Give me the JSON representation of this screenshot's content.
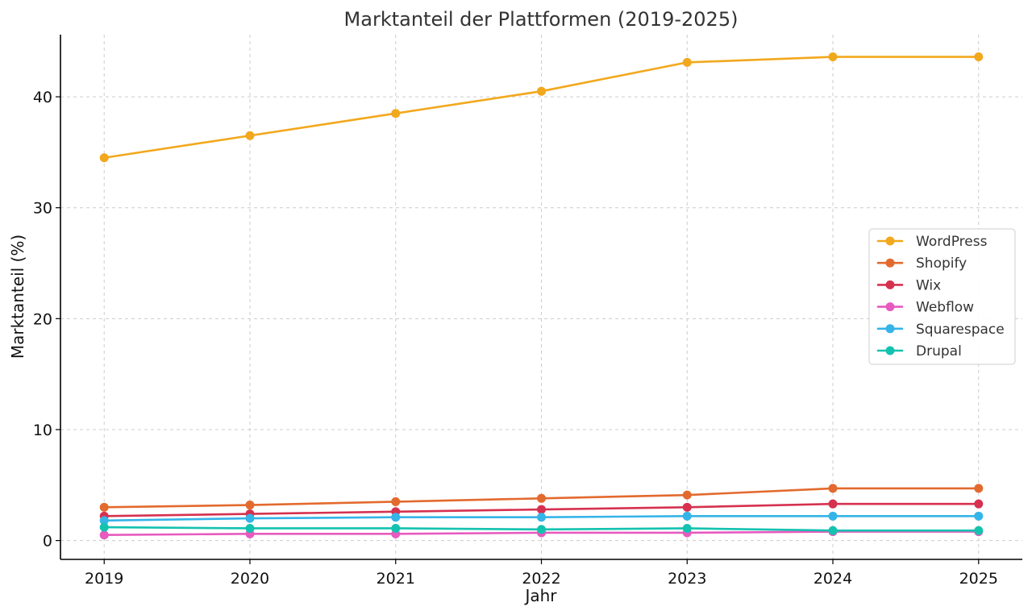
{
  "chart_data": {
    "type": "line",
    "title": "Marktanteil der Plattformen (2019-2025)",
    "xlabel": "Jahr",
    "ylabel": "Marktanteil (%)",
    "x": [
      2019,
      2020,
      2021,
      2022,
      2023,
      2024,
      2025
    ],
    "x_tick_labels": [
      "2019",
      "2020",
      "2021",
      "2022",
      "2023",
      "2024",
      "2025"
    ],
    "y_ticks": [
      0,
      10,
      20,
      30,
      40
    ],
    "y_tick_labels": [
      "0",
      "10",
      "20",
      "30",
      "40"
    ],
    "ylim": [
      -1.7,
      45.6
    ],
    "xlim": [
      2018.7,
      2025.3
    ],
    "grid": true,
    "legend_position": "center-right",
    "series": [
      {
        "name": "WordPress",
        "color": "#F2A81D",
        "values": [
          34.5,
          36.5,
          38.5,
          40.5,
          43.1,
          43.6,
          43.6
        ]
      },
      {
        "name": "Shopify",
        "color": "#E36A2E",
        "values": [
          3.0,
          3.2,
          3.5,
          3.8,
          4.1,
          4.7,
          4.7
        ]
      },
      {
        "name": "Wix",
        "color": "#D6314F",
        "values": [
          2.2,
          2.4,
          2.6,
          2.8,
          3.0,
          3.3,
          3.3
        ]
      },
      {
        "name": "Webflow",
        "color": "#E75ABF",
        "values": [
          0.5,
          0.6,
          0.6,
          0.7,
          0.7,
          0.8,
          0.8
        ]
      },
      {
        "name": "Squarespace",
        "color": "#35B4E8",
        "values": [
          1.8,
          2.0,
          2.1,
          2.1,
          2.2,
          2.2,
          2.2
        ]
      },
      {
        "name": "Drupal",
        "color": "#14C2B0",
        "values": [
          1.2,
          1.1,
          1.1,
          1.0,
          1.1,
          0.9,
          0.9
        ]
      }
    ]
  }
}
